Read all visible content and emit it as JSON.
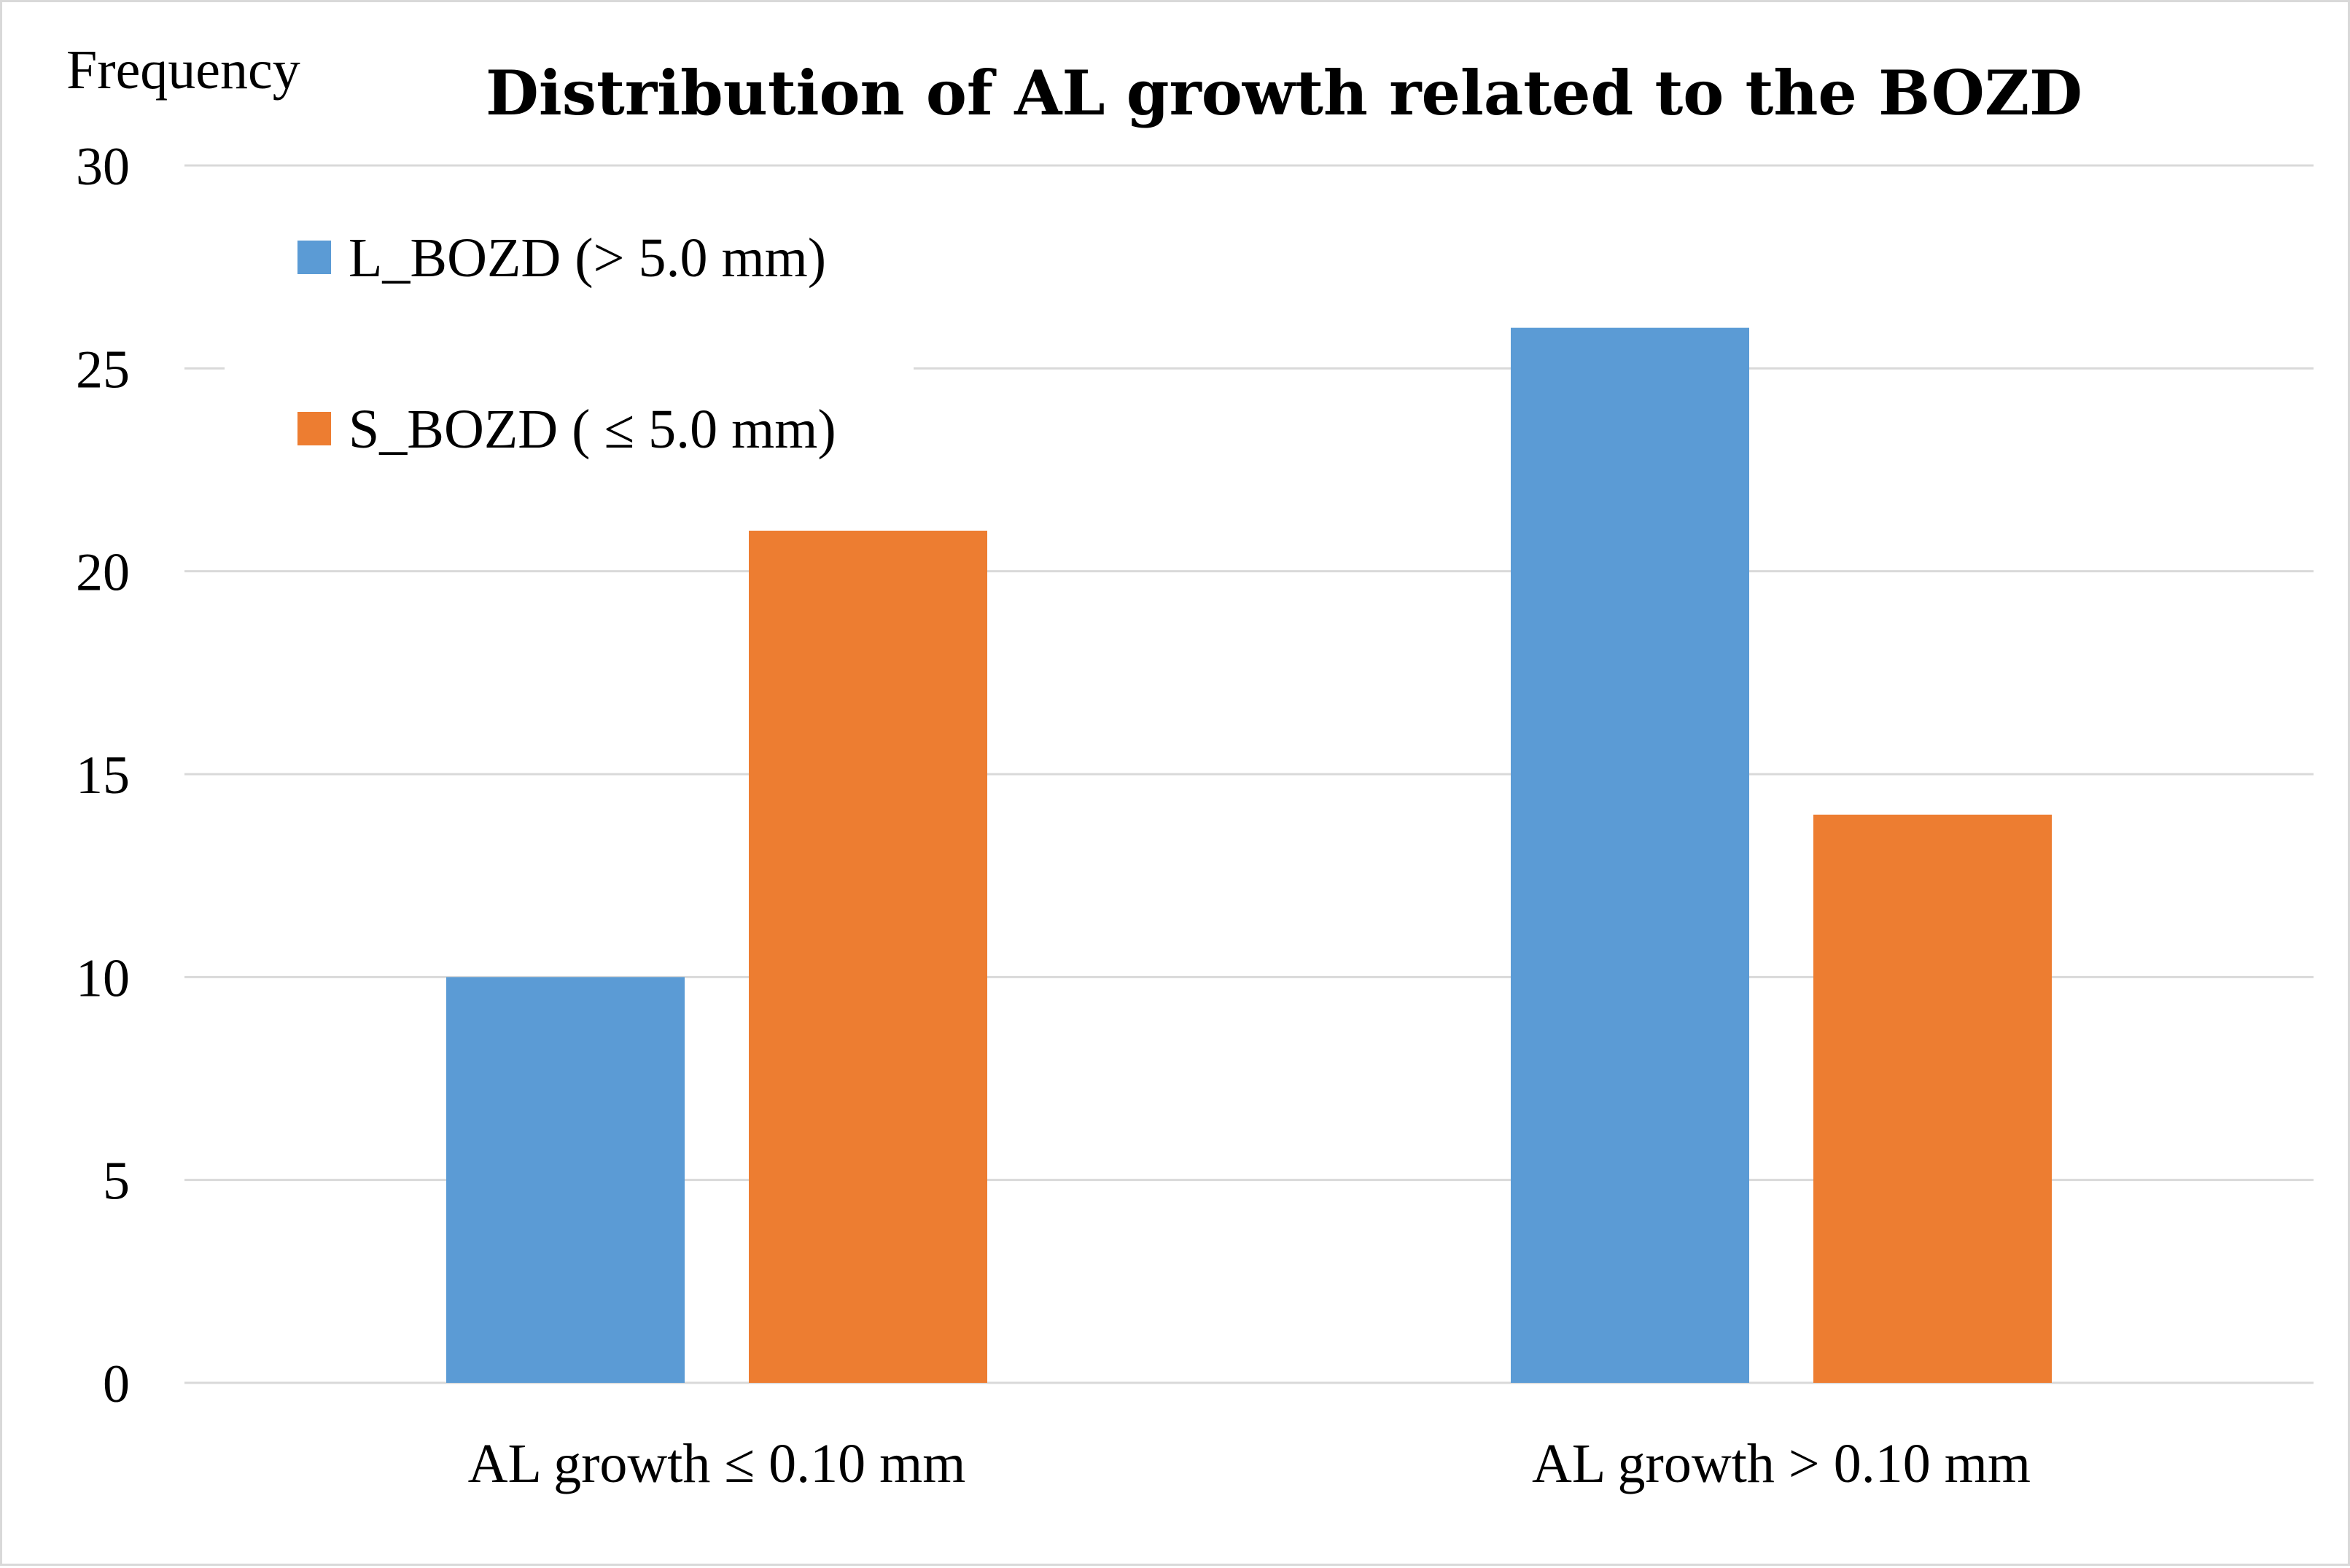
{
  "chart_data": {
    "type": "bar",
    "title": "Distribution of AL growth related to the BOZD",
    "ylabel": "Frequency",
    "xlabel": "",
    "categories": [
      "AL growth ≤ 0.10 mm",
      "AL growth > 0.10 mm"
    ],
    "series": [
      {
        "name": "L_BOZD (> 5.0 mm)",
        "values": [
          10,
          26
        ],
        "color": "#5b9bd5"
      },
      {
        "name": "S_BOZD ( ≤ 5.0 mm)",
        "values": [
          21,
          14
        ],
        "color": "#ed7d31"
      }
    ],
    "ylim": [
      0,
      30
    ],
    "yticks": [
      0,
      5,
      10,
      15,
      20,
      25,
      30
    ],
    "grid": true,
    "legend_position": "top-left"
  }
}
